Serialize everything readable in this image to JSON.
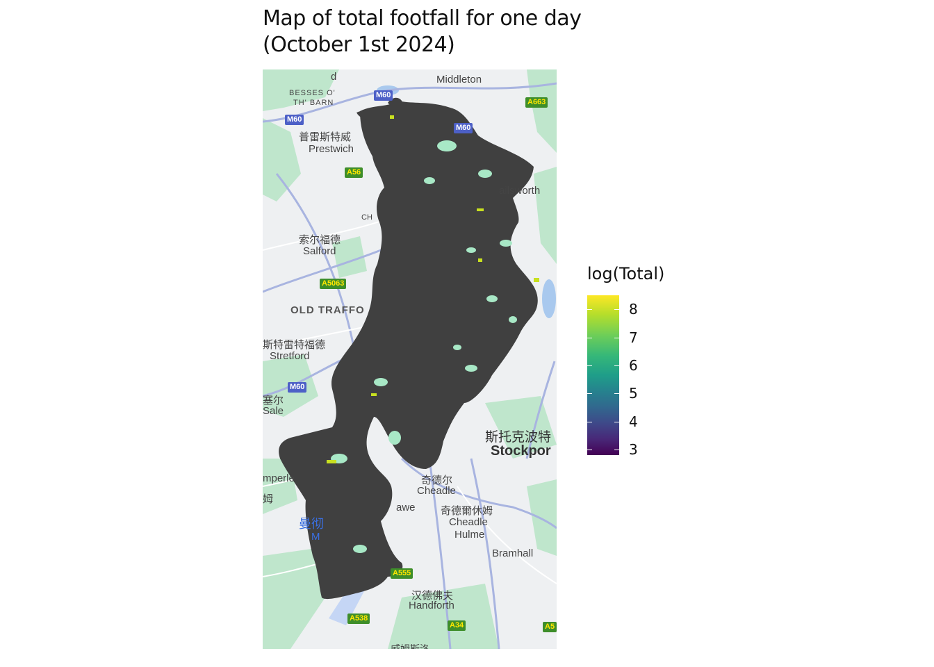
{
  "title": {
    "line1": "Map of total footfall for one day",
    "line2": "(October 1st 2024)"
  },
  "legend": {
    "title": "log(Total)",
    "ticks": [
      {
        "label": "8",
        "value": 8
      },
      {
        "label": "7",
        "value": 7
      },
      {
        "label": "6",
        "value": 6
      },
      {
        "label": "5",
        "value": 5
      },
      {
        "label": "4",
        "value": 4
      },
      {
        "label": "3",
        "value": 3
      }
    ],
    "range": [
      2.8,
      8.5
    ],
    "colors": {
      "high": "#fde725",
      "low": "#440154"
    }
  },
  "map": {
    "places": {
      "middleton": "Middleton",
      "besses": "BESSES O'",
      "besses2": "TH' BARN",
      "prestwich_cn": "普雷斯特威",
      "prestwich": "Prestwich",
      "ailsworth": "ailsworth",
      "salford_cn": "索尔福德",
      "salford": "Salford",
      "ch": "CH",
      "old_trafford": "OLD TRAFFO",
      "stretford_cn": "斯特雷特福德",
      "stretford": "Stretford",
      "sale_cn": "塞尔",
      "sale": "Sale",
      "stockport_cn": "斯托克波特",
      "stockport": "Stockpor",
      "cheadle_cn": "奇德尔",
      "cheadle": "Cheadle",
      "cheadle_hulme_cn": "奇德爾休姆",
      "cheadle_hulme1": "Cheadle",
      "cheadle_hulme2": "Hulme",
      "gatley": "awe",
      "bramhall": "Bramhall",
      "handforth_cn": "汉德佛夫",
      "handforth": "Handforth",
      "timperley": "mperle",
      "timperley_cn": "姆",
      "airport_cn": "曼彻",
      "airport": "M",
      "wilmslow_cn": "威姆斯洛",
      "top_d": "d"
    },
    "roads": {
      "m60_top": "M60",
      "m60_left": "M60",
      "m60_mid": "M60",
      "m60_sw": "M60",
      "a663": "A663",
      "a56": "A56",
      "a5063": "A5063",
      "a555": "A555",
      "a538": "A538",
      "a34": "A34",
      "a5": "A5"
    },
    "layer_colors": {
      "points": "#404040",
      "highlight": "#c8e020",
      "park": "#b6e4c8",
      "road": "#9aa8d8"
    }
  }
}
